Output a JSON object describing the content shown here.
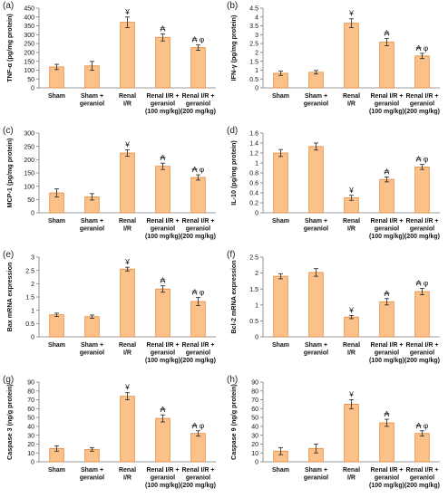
{
  "colors": {
    "bar_fill": "#FCC089",
    "bar_stroke": "#E08A3C",
    "axis": "#7a7a7a",
    "text": "#111111"
  },
  "categories": [
    [
      "Sham"
    ],
    [
      "Sham +",
      "geraniol"
    ],
    [
      "Renal",
      "I/R"
    ],
    [
      "Renal I/R +",
      "geraniol",
      "(100 mg/kg)"
    ],
    [
      "Renal I/R +",
      "geraniol",
      "(200 mg/kg)"
    ]
  ],
  "chart_data": [
    {
      "type": "bar",
      "panel_label": "(a)",
      "ylabel": "TNF-α (pg/mg protein)",
      "ylim": [
        0,
        450
      ],
      "yticks": [
        0,
        50,
        100,
        150,
        200,
        250,
        300,
        350,
        400,
        450
      ],
      "values": [
        118,
        124,
        370,
        285,
        227
      ],
      "errors": [
        15,
        25,
        30,
        20,
        15
      ],
      "annotations": [
        "",
        "",
        "¥",
        "₳",
        "₳ φ"
      ]
    },
    {
      "type": "bar",
      "panel_label": "(b)",
      "ylabel": "IFN-γ (pg/mg protein)",
      "ylim": [
        0,
        4.5
      ],
      "yticks": [
        0,
        0.5,
        1,
        1.5,
        2,
        2.5,
        3,
        3.5,
        4,
        4.5
      ],
      "values": [
        0.82,
        0.88,
        3.65,
        2.58,
        1.8
      ],
      "errors": [
        0.12,
        0.1,
        0.25,
        0.2,
        0.15
      ],
      "annotations": [
        "",
        "",
        "¥",
        "₳",
        "₳ φ"
      ]
    },
    {
      "type": "bar",
      "panel_label": "(c)",
      "ylabel": "MCP-1 (pg/mg protein)",
      "ylim": [
        0,
        300
      ],
      "yticks": [
        0,
        50,
        100,
        150,
        200,
        250,
        300
      ],
      "values": [
        75,
        60,
        225,
        175,
        133
      ],
      "errors": [
        15,
        12,
        12,
        12,
        10
      ],
      "annotations": [
        "",
        "",
        "¥",
        "₳",
        "₳ φ"
      ]
    },
    {
      "type": "bar",
      "panel_label": "(d)",
      "ylabel": "IL-10 (pg/mg protein)",
      "ylim": [
        0,
        1.6
      ],
      "yticks": [
        0,
        0.2,
        0.4,
        0.6,
        0.8,
        1,
        1.2,
        1.4,
        1.6
      ],
      "values": [
        1.2,
        1.33,
        0.3,
        0.67,
        0.92
      ],
      "errors": [
        0.07,
        0.07,
        0.05,
        0.05,
        0.05
      ],
      "annotations": [
        "",
        "",
        "¥",
        "₳",
        "₳ φ"
      ]
    },
    {
      "type": "bar",
      "panel_label": "(e)",
      "ylabel": "Bax mRNA expression",
      "ylim": [
        0,
        3
      ],
      "yticks": [
        0,
        0.5,
        1,
        1.5,
        2,
        2.5,
        3
      ],
      "values": [
        0.83,
        0.76,
        2.55,
        1.8,
        1.33
      ],
      "errors": [
        0.06,
        0.06,
        0.07,
        0.12,
        0.15
      ],
      "annotations": [
        "",
        "",
        "¥",
        "₳",
        "₳ φ"
      ]
    },
    {
      "type": "bar",
      "panel_label": "(f)",
      "ylabel": "Bcl-2 mRNA expression",
      "ylim": [
        0,
        2.5
      ],
      "yticks": [
        0,
        0.5,
        1,
        1.5,
        2,
        2.5
      ],
      "values": [
        1.9,
        2.02,
        0.62,
        1.1,
        1.42
      ],
      "errors": [
        0.08,
        0.12,
        0.05,
        0.1,
        0.1
      ],
      "annotations": [
        "",
        "",
        "¥",
        "₳",
        "₳ φ"
      ]
    },
    {
      "type": "bar",
      "panel_label": "(g)",
      "ylabel": "Caspase 3 (ng/g protein)",
      "ylim": [
        0,
        90
      ],
      "yticks": [
        0,
        10,
        20,
        30,
        40,
        50,
        60,
        70,
        80,
        90
      ],
      "values": [
        15,
        14,
        74,
        49,
        32
      ],
      "errors": [
        3,
        2,
        4,
        4,
        3
      ],
      "annotations": [
        "",
        "",
        "¥",
        "₳",
        "₳ φ"
      ]
    },
    {
      "type": "bar",
      "panel_label": "(h)",
      "ylabel": "Caspase 9 (ng/g protein)",
      "ylim": [
        0,
        90
      ],
      "yticks": [
        0,
        10,
        20,
        30,
        40,
        50,
        60,
        70,
        80,
        90
      ],
      "values": [
        12,
        15,
        65,
        44,
        32
      ],
      "errors": [
        4,
        5,
        5,
        4,
        3
      ],
      "annotations": [
        "",
        "",
        "¥",
        "₳",
        "₳ φ"
      ]
    }
  ]
}
